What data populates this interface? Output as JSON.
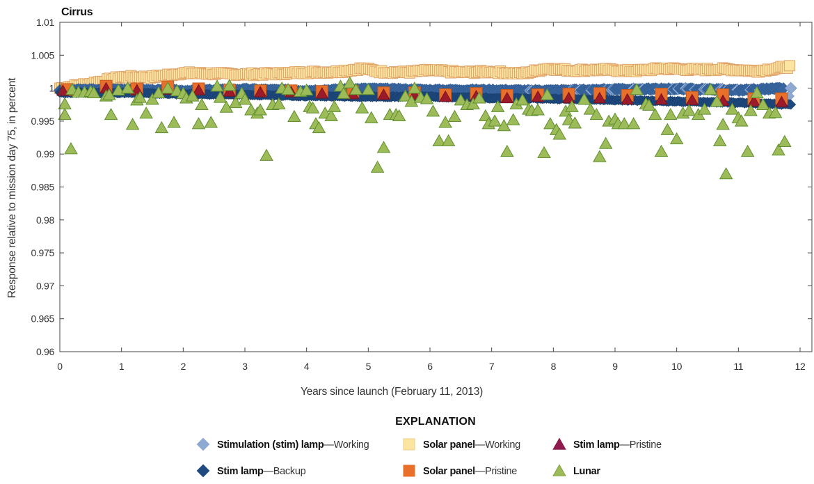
{
  "chart_data": {
    "type": "scatter",
    "title": "Cirrus",
    "xlabel": "Years since launch (February 11, 2013)",
    "ylabel": "Response relative to mission day 75, in percent",
    "xlim": [
      0,
      12
    ],
    "ylim": [
      0.96,
      1.01
    ],
    "xticks": [
      "0",
      "1",
      "2",
      "3",
      "4",
      "5",
      "6",
      "7",
      "8",
      "9",
      "10",
      "11",
      "12"
    ],
    "yticks": [
      "0.96",
      "0.965",
      "0.97",
      "0.975",
      "0.98",
      "0.985",
      "0.99",
      "0.995",
      "1",
      "1.005",
      "1.01"
    ],
    "grid": false,
    "legend": {
      "title": "EXPLANATION",
      "placement": "bottom",
      "entries": [
        {
          "key": "stim_working",
          "bold": "Stimulation (stim) lamp",
          "rest": "—Working"
        },
        {
          "key": "solar_working",
          "bold": "Solar panel",
          "rest": "—Working"
        },
        {
          "key": "stim_pristine",
          "bold": "Stim lamp",
          "rest": "—Pristine"
        },
        {
          "key": "stim_backup",
          "bold": "Stim lamp",
          "rest": "—Backup"
        },
        {
          "key": "solar_pristine",
          "bold": "Solar panel",
          "rest": "—Pristine"
        },
        {
          "key": "lunar",
          "bold": "Lunar",
          "rest": ""
        }
      ]
    },
    "series": [
      {
        "key": "solar_working",
        "name": "Solar panel—Working",
        "marker": "square",
        "color": "#fbe5a0",
        "stroke": "#e0a36a",
        "trend": [
          [
            0.0,
            1.0
          ],
          [
            0.5,
            1.0007
          ],
          [
            1.0,
            1.0017
          ],
          [
            1.5,
            1.0017
          ],
          [
            2.0,
            1.0023
          ],
          [
            2.5,
            1.0022
          ],
          [
            3.0,
            1.0021
          ],
          [
            3.5,
            1.0022
          ],
          [
            4.0,
            1.0024
          ],
          [
            4.5,
            1.0025
          ],
          [
            4.9,
            1.003
          ],
          [
            5.2,
            1.0025
          ],
          [
            5.6,
            1.0024
          ],
          [
            6.0,
            1.0027
          ],
          [
            6.5,
            1.0024
          ],
          [
            7.0,
            1.0025
          ],
          [
            7.5,
            1.0022
          ],
          [
            7.9,
            1.003
          ],
          [
            8.3,
            1.0027
          ],
          [
            8.8,
            1.0028
          ],
          [
            9.3,
            1.0026
          ],
          [
            9.8,
            1.003
          ],
          [
            10.3,
            1.0028
          ],
          [
            10.8,
            1.0029
          ],
          [
            11.3,
            1.0026
          ],
          [
            11.85,
            1.0033
          ]
        ],
        "spread": 0.0005
      },
      {
        "key": "stim_working",
        "name": "Stimulation (stim) lamp—Working",
        "marker": "diamond",
        "color": "#3a66a0",
        "highlight": "#8eaad2",
        "trend": [
          [
            0.0,
            0.9997
          ],
          [
            1.0,
            0.9998
          ],
          [
            2.0,
            0.9996
          ],
          [
            3.0,
            0.9998
          ],
          [
            4.0,
            0.9996
          ],
          [
            5.0,
            0.9999
          ],
          [
            6.0,
            0.9997
          ],
          [
            7.0,
            0.9997
          ],
          [
            7.8,
            0.9996
          ],
          [
            8.5,
            0.9997
          ],
          [
            9.0,
            0.9998
          ],
          [
            10.0,
            0.9999
          ],
          [
            11.0,
            0.9997
          ],
          [
            11.85,
            1.0
          ]
        ],
        "spread": 0.0004
      },
      {
        "key": "stim_backup",
        "name": "Stim lamp—Backup",
        "marker": "diamond",
        "color": "#1e4a80",
        "trend": [
          [
            0.0,
            0.9993
          ],
          [
            1.0,
            0.9993
          ],
          [
            2.0,
            0.9991
          ],
          [
            3.0,
            0.999
          ],
          [
            4.0,
            0.9988
          ],
          [
            5.0,
            0.9987
          ],
          [
            6.0,
            0.9987
          ],
          [
            7.0,
            0.9985
          ],
          [
            8.0,
            0.9984
          ],
          [
            9.0,
            0.9982
          ],
          [
            10.0,
            0.998
          ],
          [
            11.0,
            0.9978
          ],
          [
            11.85,
            0.9975
          ]
        ],
        "spread": 0.00025
      },
      {
        "key": "solar_pristine",
        "name": "Solar panel—Pristine",
        "marker": "square",
        "color": "#e8702a",
        "stroke": "#c35b1d",
        "points": [
          [
            0.12,
            0.9998
          ],
          [
            0.75,
            1.0003
          ],
          [
            1.25,
            0.9999
          ],
          [
            1.75,
            1.0002
          ],
          [
            2.25,
            0.9999
          ],
          [
            2.75,
            0.9997
          ],
          [
            3.25,
            0.9996
          ],
          [
            3.75,
            0.9996
          ],
          [
            4.25,
            0.9995
          ],
          [
            4.75,
            0.9995
          ],
          [
            5.25,
            0.9993
          ],
          [
            5.75,
            0.9993
          ],
          [
            6.25,
            0.999
          ],
          [
            6.75,
            0.9992
          ],
          [
            7.25,
            0.9989
          ],
          [
            7.75,
            0.999
          ],
          [
            8.25,
            0.9991
          ],
          [
            8.75,
            0.9992
          ],
          [
            9.2,
            0.9989
          ],
          [
            9.75,
            0.9991
          ],
          [
            10.25,
            0.9986
          ],
          [
            10.75,
            0.999
          ],
          [
            11.25,
            0.9984
          ],
          [
            11.7,
            0.9984
          ]
        ]
      },
      {
        "key": "stim_pristine",
        "name": "Stim lamp—Pristine",
        "marker": "triangle",
        "color": "#9b1b2a",
        "stroke": "#7a1220",
        "points": [
          [
            0.05,
            0.9996
          ],
          [
            0.2,
            0.9998
          ],
          [
            0.75,
            1.0
          ],
          [
            1.25,
            0.9997
          ],
          [
            1.75,
            0.9998
          ],
          [
            2.25,
            0.9997
          ],
          [
            2.75,
            0.9995
          ],
          [
            3.25,
            0.9994
          ],
          [
            3.75,
            0.9994
          ],
          [
            4.25,
            0.9992
          ],
          [
            4.75,
            0.9991
          ],
          [
            5.25,
            0.999
          ],
          [
            5.75,
            0.999
          ],
          [
            6.25,
            0.9987
          ],
          [
            6.75,
            0.9988
          ],
          [
            7.25,
            0.9985
          ],
          [
            7.75,
            0.9987
          ],
          [
            8.25,
            0.9985
          ],
          [
            8.75,
            0.9985
          ],
          [
            9.2,
            0.9983
          ],
          [
            9.75,
            0.9983
          ],
          [
            10.25,
            0.9982
          ],
          [
            10.75,
            0.9981
          ],
          [
            11.25,
            0.998
          ],
          [
            11.7,
            0.9979
          ]
        ]
      },
      {
        "key": "lunar",
        "name": "Lunar",
        "marker": "triangle",
        "color": "#9dbb58",
        "stroke": "#5f8f2e",
        "points": [
          [
            0.08,
            0.9976
          ],
          [
            0.08,
            0.996
          ],
          [
            0.18,
            0.9908
          ],
          [
            0.2,
            0.9998
          ],
          [
            0.3,
            0.9994
          ],
          [
            0.4,
            0.9994
          ],
          [
            0.5,
            0.9995
          ],
          [
            0.55,
            0.9993
          ],
          [
            0.75,
            0.9988
          ],
          [
            0.8,
            0.999
          ],
          [
            0.83,
            0.996
          ],
          [
            0.95,
            0.9997
          ],
          [
            1.1,
            1.0
          ],
          [
            1.18,
            0.9945
          ],
          [
            1.25,
            0.9982
          ],
          [
            1.3,
            0.9986
          ],
          [
            1.4,
            0.9962
          ],
          [
            1.5,
            0.9983
          ],
          [
            1.6,
            0.9993
          ],
          [
            1.65,
            0.994
          ],
          [
            1.75,
            1.0
          ],
          [
            1.85,
            0.9948
          ],
          [
            1.9,
            0.9996
          ],
          [
            2.0,
            0.9992
          ],
          [
            2.05,
            0.9985
          ],
          [
            2.15,
            0.9988
          ],
          [
            2.25,
            0.9946
          ],
          [
            2.3,
            0.9975
          ],
          [
            2.45,
            0.9948
          ],
          [
            2.55,
            1.0003
          ],
          [
            2.6,
            0.9986
          ],
          [
            2.7,
            0.9971
          ],
          [
            2.75,
            1.0004
          ],
          [
            2.85,
            0.9978
          ],
          [
            2.95,
            0.9992
          ],
          [
            3.0,
            0.9983
          ],
          [
            3.1,
            0.9967
          ],
          [
            3.2,
            0.9962
          ],
          [
            3.25,
            0.9967
          ],
          [
            3.35,
            0.9898
          ],
          [
            3.45,
            0.9975
          ],
          [
            3.55,
            0.9976
          ],
          [
            3.6,
            1.0
          ],
          [
            3.7,
            0.9998
          ],
          [
            3.8,
            0.9957
          ],
          [
            3.9,
            0.9995
          ],
          [
            4.0,
            0.9997
          ],
          [
            4.05,
            0.9972
          ],
          [
            4.1,
            0.997
          ],
          [
            4.15,
            0.9946
          ],
          [
            4.2,
            0.994
          ],
          [
            4.3,
            0.9962
          ],
          [
            4.4,
            0.9958
          ],
          [
            4.45,
            0.9972
          ],
          [
            4.55,
            1.0003
          ],
          [
            4.6,
            0.9992
          ],
          [
            4.7,
            1.0008
          ],
          [
            4.8,
            0.9998
          ],
          [
            4.9,
            0.997
          ],
          [
            5.0,
            0.9998
          ],
          [
            5.05,
            0.9955
          ],
          [
            5.15,
            0.988
          ],
          [
            5.25,
            0.991
          ],
          [
            5.35,
            0.996
          ],
          [
            5.45,
            0.996
          ],
          [
            5.5,
            0.9958
          ],
          [
            5.6,
            0.9988
          ],
          [
            5.7,
            0.998
          ],
          [
            5.75,
            1.0
          ],
          [
            5.85,
            0.9986
          ],
          [
            5.95,
            0.9984
          ],
          [
            6.05,
            0.9965
          ],
          [
            6.15,
            0.992
          ],
          [
            6.25,
            0.9948
          ],
          [
            6.3,
            0.992
          ],
          [
            6.4,
            0.9957
          ],
          [
            6.5,
            0.9982
          ],
          [
            6.6,
            0.9975
          ],
          [
            6.7,
            0.9976
          ],
          [
            6.8,
            0.9985
          ],
          [
            6.9,
            0.9958
          ],
          [
            6.95,
            0.9946
          ],
          [
            7.05,
            0.995
          ],
          [
            7.1,
            0.9972
          ],
          [
            7.2,
            0.9943
          ],
          [
            7.25,
            0.9904
          ],
          [
            7.35,
            0.9952
          ],
          [
            7.4,
            0.9976
          ],
          [
            7.5,
            0.9982
          ],
          [
            7.6,
            0.9968
          ],
          [
            7.65,
            0.9966
          ],
          [
            7.75,
            0.9967
          ],
          [
            7.85,
            0.9902
          ],
          [
            7.9,
            0.999
          ],
          [
            7.95,
            0.9946
          ],
          [
            8.05,
            0.9937
          ],
          [
            8.1,
            0.993
          ],
          [
            8.2,
            0.9965
          ],
          [
            8.25,
            0.9952
          ],
          [
            8.3,
            0.9972
          ],
          [
            8.35,
            0.9947
          ],
          [
            8.5,
            0.9983
          ],
          [
            8.6,
            0.9968
          ],
          [
            8.7,
            0.996
          ],
          [
            8.75,
            0.9896
          ],
          [
            8.85,
            0.9916
          ],
          [
            8.9,
            0.995
          ],
          [
            9.0,
            0.9953
          ],
          [
            9.05,
            0.9946
          ],
          [
            9.15,
            0.9946
          ],
          [
            9.3,
            0.9946
          ],
          [
            9.35,
            0.9998
          ],
          [
            9.5,
            0.9976
          ],
          [
            9.55,
            0.9974
          ],
          [
            9.65,
            0.996
          ],
          [
            9.75,
            0.9904
          ],
          [
            9.85,
            0.9937
          ],
          [
            9.9,
            0.996
          ],
          [
            10.0,
            0.9923
          ],
          [
            10.1,
            0.9962
          ],
          [
            10.2,
            0.9966
          ],
          [
            10.35,
            0.996
          ],
          [
            10.45,
            0.9968
          ],
          [
            10.55,
            0.9998
          ],
          [
            10.65,
            0.998
          ],
          [
            10.7,
            0.992
          ],
          [
            10.75,
            0.9945
          ],
          [
            10.8,
            0.987
          ],
          [
            10.9,
            0.9968
          ],
          [
            11.0,
            0.9955
          ],
          [
            11.05,
            0.995
          ],
          [
            11.15,
            0.9904
          ],
          [
            11.2,
            0.9966
          ],
          [
            11.3,
            0.9993
          ],
          [
            11.4,
            0.9975
          ],
          [
            11.5,
            0.9962
          ],
          [
            11.6,
            0.9963
          ],
          [
            11.65,
            0.9906
          ],
          [
            11.75,
            0.9919
          ]
        ]
      }
    ]
  }
}
